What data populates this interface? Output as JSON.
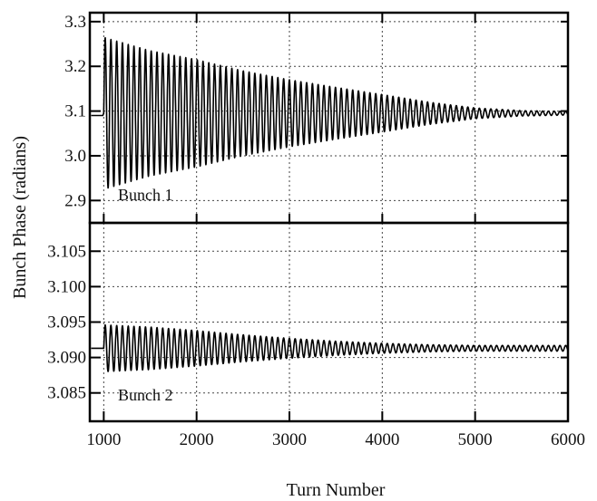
{
  "chart_data": {
    "type": "line",
    "xlabel": "Turn Number",
    "ylabel": "Bunch Phase (radians)",
    "xlim": [
      850,
      6000
    ],
    "xticks": [
      "1000",
      "2000",
      "3000",
      "4000",
      "5000",
      "6000"
    ],
    "x_tick_values": [
      1000,
      2000,
      3000,
      4000,
      5000,
      6000
    ],
    "panels": [
      {
        "annotation": "Bunch 1",
        "ylim": [
          2.85,
          3.32
        ],
        "yticks": [
          "2.9",
          "3.0",
          "3.1",
          "3.2",
          "3.3"
        ],
        "y_tick_values": [
          2.9,
          3.0,
          3.1,
          3.2,
          3.3
        ],
        "series": [
          {
            "signal": "damped-oscillation",
            "start_turn": 1000,
            "end_turn": 6000,
            "period_turns": 62,
            "center": 3.095,
            "envelope": [
              [
                1000,
                0.17
              ],
              [
                1500,
                0.14
              ],
              [
                2000,
                0.12
              ],
              [
                2500,
                0.095
              ],
              [
                3000,
                0.075
              ],
              [
                3500,
                0.058
              ],
              [
                4000,
                0.042
              ],
              [
                4500,
                0.025
              ],
              [
                5000,
                0.012
              ],
              [
                5500,
                0.006
              ],
              [
                6000,
                0.004
              ]
            ],
            "pre_start_value": 3.09
          }
        ]
      },
      {
        "annotation": "Bunch 2",
        "ylim": [
          3.081,
          3.109
        ],
        "yticks": [
          "3.085",
          "3.090",
          "3.095",
          "3.100",
          "3.105"
        ],
        "y_tick_values": [
          3.085,
          3.09,
          3.095,
          3.1,
          3.105
        ],
        "series": [
          {
            "signal": "damped-oscillation",
            "start_turn": 1000,
            "end_turn": 6000,
            "period_turns": 62,
            "center": 3.0913,
            "envelope": [
              [
                1000,
                0.0033
              ],
              [
                1500,
                0.003
              ],
              [
                2000,
                0.0025
              ],
              [
                2500,
                0.0019
              ],
              [
                3000,
                0.0014
              ],
              [
                3500,
                0.001
              ],
              [
                4000,
                0.0007
              ],
              [
                4500,
                0.0005
              ],
              [
                5000,
                0.0004
              ],
              [
                5500,
                0.0004
              ],
              [
                6000,
                0.0004
              ]
            ],
            "pre_start_value": 3.0913
          }
        ]
      }
    ]
  }
}
